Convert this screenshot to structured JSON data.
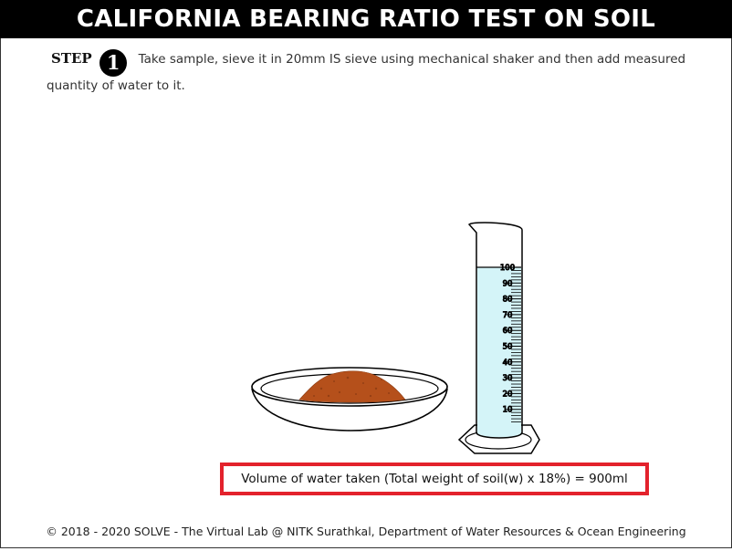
{
  "header": {
    "title": "CALIFORNIA BEARING RATIO TEST ON SOIL"
  },
  "step": {
    "label": "STEP",
    "number": "1",
    "instruction": "Take sample, sieve it in 20mm IS sieve using mechanical shaker and then add measured quantity of water to it."
  },
  "cylinder": {
    "scale_labels": [
      "100",
      "90",
      "80",
      "70",
      "60",
      "50",
      "40",
      "30",
      "20",
      "10"
    ],
    "fill_level_ml": 100,
    "water_color": "#d4f4f8"
  },
  "dish": {
    "soil_color": "#b5501b"
  },
  "result": {
    "text": "Volume of water taken (Total weight of soil(w) x 18%) = 900ml"
  },
  "footer": {
    "text": "© 2018 - 2020 SOLVE - The Virtual Lab @ NITK Surathkal, Department of Water Resources & Ocean Engineering"
  }
}
